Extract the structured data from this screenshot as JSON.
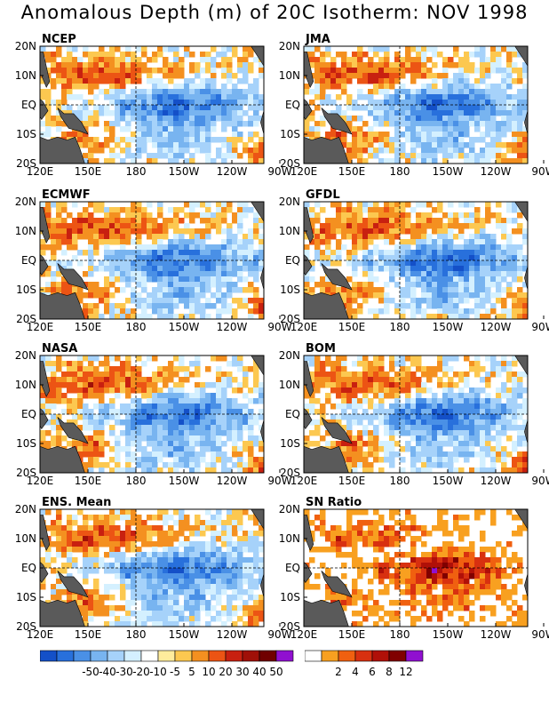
{
  "title": "Anomalous Depth (m) of 20C Isotherm: NOV 1998",
  "y_ticks": [
    "20N",
    "10N",
    "EQ",
    "10S",
    "20S"
  ],
  "x_ticks": [
    "120E",
    "150E",
    "180",
    "150W",
    "120W",
    "90W"
  ],
  "panels": [
    {
      "name": "NCEP"
    },
    {
      "name": "JMA"
    },
    {
      "name": "ECMWF"
    },
    {
      "name": "GFDL"
    },
    {
      "name": "NASA"
    },
    {
      "name": "BOM"
    },
    {
      "name": "ENS. Mean"
    },
    {
      "name": "SN Ratio"
    }
  ],
  "colorbar_depth": {
    "colors": [
      "#1450c8",
      "#2870dc",
      "#4a90e6",
      "#78b4f0",
      "#a6d2fa",
      "#d4f0ff",
      "#ffffff",
      "#ffec9c",
      "#fcc850",
      "#f49020",
      "#ec5414",
      "#c82010",
      "#a01008",
      "#700000",
      "#9010d0"
    ],
    "labels": [
      "-50",
      "-40",
      "-30",
      "-20",
      "-10",
      "-5",
      "5",
      "10",
      "20",
      "30",
      "40",
      "50"
    ]
  },
  "colorbar_sn": {
    "colors": [
      "#ffffff",
      "#f8a020",
      "#f06010",
      "#d83010",
      "#b01008",
      "#800000",
      "#9010d0"
    ],
    "labels": [
      "2",
      "4",
      "6",
      "8",
      "12"
    ]
  }
}
